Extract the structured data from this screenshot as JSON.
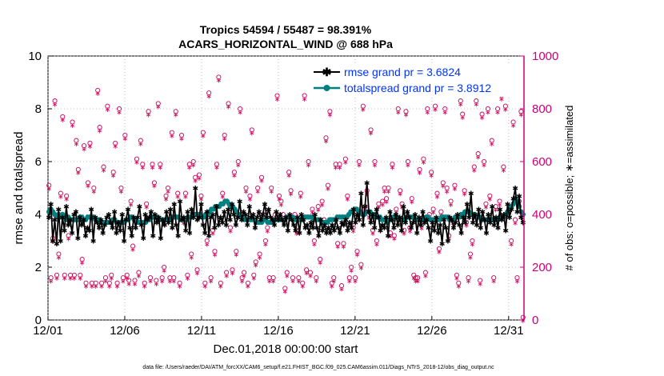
{
  "chart_data": {
    "type": "line",
    "title": [
      "Tropics 54594 / 55487 = 98.391%",
      "ACARS_HORIZONTAL_WIND @ 688 hPa"
    ],
    "xlabel": "Dec.01,2018 00:00:00 start",
    "ylabel_left": "rmse and totalspread",
    "ylabel_right": "# of obs: o=possible; ∗=assimilated",
    "footer": "data file: /Users/raeder/DAI/ATM_forcXX/CAM6_setup/f.e21.FHIST_BGC.f09_025.CAM6assim.011/Diags_NTrS_2018-12/obs_diag_output.nc",
    "x_range": [
      0,
      31
    ],
    "x_ticks": [
      0,
      5,
      10,
      15,
      20,
      25,
      30
    ],
    "x_tick_labels": [
      "12/01",
      "12/06",
      "12/11",
      "12/16",
      "12/21",
      "12/26",
      "12/31"
    ],
    "ylim_left": [
      0,
      10
    ],
    "y_ticks_left": [
      "0",
      "2",
      "4",
      "6",
      "8",
      "10"
    ],
    "ylim_right": [
      0,
      1000
    ],
    "y_ticks_right": [
      "0",
      "200",
      "400",
      "600",
      "800",
      "1000"
    ],
    "legend": {
      "location": "top-right",
      "entries": [
        "rmse grand pr = 3.6824",
        "totalspread grand pr = 3.8912"
      ]
    },
    "colors": {
      "rmse": "#000000",
      "spread": "#008080",
      "obs": "#cc0055",
      "legend_text": "#0033ff",
      "right_axis": "#cc0077"
    },
    "rmse_values": [
      3.9,
      4.4,
      3.0,
      3.8,
      2.9,
      4.2,
      3.0,
      3.9,
      3.4,
      4.3,
      3.6,
      3.8,
      3.3,
      4.0,
      4.1,
      3.1,
      3.9,
      3.6,
      3.8,
      3.2,
      3.5,
      3.4,
      4.2,
      3.0,
      3.9,
      3.7,
      3.5,
      3.8,
      3.3,
      3.6,
      3.9,
      4.0,
      3.7,
      3.5,
      4.1,
      3.3,
      3.7,
      3.4,
      4.0,
      3.0,
      3.8,
      4.2,
      3.5,
      3.2,
      3.9,
      3.5,
      3.9,
      4.3,
      3.6,
      3.1,
      4.0,
      3.8,
      3.9,
      4.1,
      3.2,
      4.0,
      3.7,
      3.9,
      3.1,
      3.8,
      3.6,
      4.1,
      3.7,
      4.2,
      3.5,
      4.4,
      3.6,
      3.2,
      4.5,
      3.8,
      3.9,
      3.4,
      4.1,
      3.3,
      4.2,
      3.9,
      5.0,
      3.8,
      3.9,
      4.4,
      3.6,
      3.3,
      4.1,
      3.2,
      3.9,
      4.0,
      3.5,
      4.3,
      3.6,
      3.9,
      3.7,
      4.1,
      3.6,
      4.2,
      3.8,
      4.4,
      4.0,
      3.6,
      3.9,
      4.5,
      3.8,
      4.1,
      4.0,
      3.6,
      4.3,
      3.9,
      4.0,
      3.5,
      3.9,
      4.1,
      3.8,
      4.0,
      4.4,
      3.9,
      4.2,
      3.9,
      3.8,
      3.6,
      4.1,
      3.8,
      4.0,
      3.8,
      3.6,
      3.9,
      3.4,
      4.0,
      3.8,
      3.6,
      3.4,
      3.9,
      3.3,
      4.0,
      3.8,
      3.5,
      3.6,
      3.3,
      3.7,
      3.5,
      4.0,
      3.5,
      3.2,
      3.8,
      3.4,
      3.6,
      3.3,
      3.5,
      3.3,
      3.6,
      3.4,
      3.8,
      3.5,
      3.3,
      3.7,
      3.6,
      3.8,
      3.4,
      3.7,
      3.5,
      4.2,
      3.7,
      4.0,
      3.8,
      4.8,
      3.6,
      4.3,
      5.2,
      4.1,
      3.7,
      4.0,
      3.5,
      4.2,
      3.9,
      3.4,
      3.6,
      3.5,
      3.9,
      3.2,
      4.1,
      3.8,
      3.5,
      4.0,
      3.6,
      3.9,
      3.4,
      4.3,
      3.7,
      4.1,
      3.9,
      3.5,
      3.7,
      4.0,
      3.3,
      3.9,
      3.6,
      4.1,
      3.7,
      3.8,
      3.5,
      3.0,
      3.7,
      3.4,
      3.9,
      3.3,
      3.6,
      2.9,
      3.8,
      3.5,
      3.0,
      3.9,
      3.8,
      3.5,
      3.7,
      4.0,
      3.6,
      3.3,
      3.9,
      3.7,
      4.4,
      3.9,
      4.8,
      3.7,
      4.0,
      3.6,
      4.2,
      3.5,
      4.1,
      3.8,
      3.3,
      4.0,
      3.7,
      4.3,
      3.6,
      3.9,
      3.5,
      4.2,
      3.8,
      4.0,
      3.4,
      4.4,
      3.9,
      4.2,
      4.6,
      5.0,
      4.1,
      4.7,
      3.9,
      3.7
    ],
    "spread_values": [
      4.1,
      4.2,
      4.1,
      4.0,
      3.9,
      4.0,
      3.9,
      4.0,
      3.9,
      3.8,
      3.9,
      3.8,
      3.8,
      3.8,
      3.8,
      3.8,
      3.9,
      3.9,
      3.8,
      3.8,
      3.9,
      3.9,
      3.9,
      3.9,
      3.8,
      3.8,
      3.8,
      3.7,
      3.7,
      3.7,
      3.7,
      3.7,
      3.7,
      3.8,
      3.8,
      3.7,
      3.7,
      3.7,
      3.7,
      3.7,
      3.8,
      3.8,
      3.9,
      3.9,
      3.8,
      3.8,
      3.7,
      3.7,
      3.7,
      3.7,
      3.7,
      3.8,
      3.8,
      3.9,
      3.9,
      3.9,
      3.9,
      3.8,
      3.8,
      3.8,
      3.8,
      3.8,
      3.8,
      3.8,
      3.9,
      3.9,
      3.9,
      3.9,
      3.8,
      3.8,
      3.8,
      3.8,
      3.9,
      3.9,
      3.9,
      4.0,
      4.0,
      4.0,
      4.0,
      3.9,
      3.9,
      4.0,
      4.0,
      4.1,
      4.2,
      4.2,
      4.3,
      4.3,
      4.3,
      4.4,
      4.4,
      4.5,
      4.5,
      4.4,
      4.3,
      4.3,
      4.2,
      4.1,
      4.0,
      3.9,
      3.9,
      3.8,
      3.8,
      3.8,
      3.8,
      3.8,
      3.8,
      3.7,
      3.7,
      3.7,
      3.7,
      3.8,
      3.8,
      3.7,
      3.7,
      3.7,
      3.8,
      3.8,
      3.8,
      3.8,
      3.8,
      3.8,
      3.8,
      3.9,
      3.9,
      3.9,
      3.9,
      3.8,
      3.8,
      3.8,
      3.8,
      3.8,
      3.9,
      3.9,
      3.9,
      3.9,
      3.9,
      3.8,
      3.8,
      3.8,
      3.8,
      3.7,
      3.7,
      3.7,
      3.7,
      3.8,
      3.8,
      3.8,
      3.8,
      3.9,
      3.9,
      3.9,
      3.9,
      3.9,
      3.9,
      4.0,
      4.1,
      4.1,
      4.2,
      4.2,
      4.1,
      4.1,
      4.0,
      4.0,
      4.1,
      4.1,
      4.1,
      4.0,
      4.0,
      3.9,
      3.9,
      3.9,
      3.8,
      3.8,
      3.8,
      3.7,
      3.8,
      3.8,
      3.9,
      3.9,
      3.9,
      3.8,
      3.8,
      3.8,
      3.8,
      3.9,
      3.9,
      3.9,
      3.9,
      3.8,
      3.8,
      3.8,
      3.8,
      3.8,
      3.8,
      3.9,
      3.9,
      3.8,
      3.8,
      3.8,
      3.8,
      3.8,
      3.8,
      3.9,
      3.9,
      3.9,
      3.9,
      3.8,
      3.8,
      3.8,
      3.9,
      3.9,
      3.9,
      4.0,
      4.0,
      4.1,
      4.1,
      4.1,
      4.0,
      4.0,
      4.0,
      3.9,
      3.9,
      3.9,
      3.8,
      3.8,
      3.8,
      3.8,
      3.8,
      3.8,
      3.8,
      3.8,
      3.8,
      3.9,
      3.9,
      3.9,
      4.0,
      4.1,
      4.2,
      4.3,
      4.4,
      4.6,
      4.5,
      4.3,
      4.1,
      4.0
    ],
    "obs_possible": [
      510,
      160,
      310,
      830,
      170,
      250,
      480,
      770,
      170,
      470,
      320,
      170,
      750,
      170,
      680,
      570,
      170,
      230,
      660,
      140,
      520,
      670,
      140,
      500,
      140,
      870,
      730,
      140,
      580,
      160,
      810,
      140,
      170,
      560,
      670,
      140,
      800,
      500,
      160,
      700,
      170,
      150,
      450,
      280,
      150,
      610,
      180,
      680,
      590,
      140,
      440,
      790,
      160,
      590,
      520,
      150,
      820,
      590,
      160,
      200,
      470,
      500,
      160,
      710,
      160,
      790,
      480,
      140,
      700,
      380,
      480,
      170,
      590,
      250,
      600,
      540,
      190,
      550,
      470,
      710,
      140,
      300,
      860,
      160,
      340,
      260,
      590,
      920,
      140,
      480,
      700,
      180,
      820,
      350,
      190,
      560,
      260,
      600,
      800,
      160,
      180,
      500,
      140,
      470,
      720,
      170,
      220,
      500,
      250,
      540,
      400,
      300,
      350,
      160,
      500,
      160,
      400,
      850,
      470,
      450,
      400,
      120,
      180,
      560,
      490,
      160,
      400,
      340,
      160,
      480,
      140,
      850,
      190,
      600,
      180,
      420,
      300,
      160,
      430,
      230,
      450,
      380,
      690,
      510,
      790,
      140,
      160,
      590,
      290,
      590,
      130,
      290,
      610,
      470,
      160,
      200,
      350,
      160,
      260,
      600,
      210,
      810,
      430,
      490,
      400,
      720,
      340,
      600,
      300,
      440,
      940,
      450,
      500,
      460,
      500,
      330,
      590,
      320,
      420,
      800,
      490,
      440,
      340,
      790,
      600,
      350,
      460,
      170,
      160,
      160,
      570,
      360,
      610,
      180,
      800,
      400,
      560,
      420,
      810,
      480,
      270,
      410,
      520,
      800,
      500,
      320,
      450,
      380,
      510,
      170,
      140,
      830,
      780,
      490,
      370,
      160,
      250,
      300,
      580,
      830,
      630,
      150,
      780,
      600,
      440,
      800,
      470,
      680,
      160,
      430,
      800,
      450,
      850,
      580,
      810,
      410,
      430,
      300,
      750,
      380,
      160,
      450,
      790,
      10
    ],
    "obs_assimilated": [
      500,
      150,
      300,
      820,
      160,
      240,
      470,
      760,
      160,
      460,
      310,
      160,
      740,
      160,
      670,
      560,
      160,
      220,
      650,
      130,
      510,
      660,
      130,
      490,
      130,
      860,
      720,
      130,
      570,
      150,
      800,
      130,
      160,
      550,
      660,
      130,
      790,
      490,
      150,
      690,
      160,
      140,
      440,
      270,
      140,
      600,
      170,
      670,
      580,
      130,
      430,
      780,
      150,
      580,
      510,
      140,
      810,
      580,
      150,
      190,
      460,
      490,
      150,
      700,
      150,
      780,
      470,
      130,
      690,
      370,
      470,
      160,
      580,
      240,
      590,
      530,
      180,
      540,
      460,
      700,
      130,
      290,
      850,
      150,
      330,
      250,
      580,
      910,
      130,
      470,
      690,
      170,
      810,
      340,
      180,
      550,
      250,
      590,
      790,
      150,
      170,
      490,
      130,
      460,
      710,
      160,
      210,
      490,
      240,
      530,
      390,
      290,
      340,
      150,
      490,
      150,
      390,
      840,
      460,
      440,
      390,
      110,
      170,
      550,
      480,
      150,
      390,
      330,
      150,
      470,
      130,
      840,
      180,
      590,
      170,
      410,
      290,
      150,
      420,
      220,
      440,
      370,
      680,
      500,
      780,
      130,
      150,
      580,
      280,
      580,
      120,
      280,
      600,
      460,
      150,
      190,
      340,
      150,
      250,
      590,
      200,
      800,
      420,
      480,
      390,
      710,
      330,
      590,
      290,
      430,
      930,
      440,
      490,
      450,
      490,
      320,
      580,
      310,
      410,
      790,
      480,
      430,
      330,
      780,
      590,
      340,
      450,
      160,
      150,
      150,
      560,
      350,
      600,
      170,
      790,
      390,
      550,
      410,
      800,
      470,
      260,
      400,
      510,
      790,
      490,
      310,
      440,
      370,
      500,
      160,
      130,
      820,
      770,
      480,
      360,
      150,
      240,
      290,
      570,
      820,
      620,
      140,
      770,
      590,
      430,
      790,
      460,
      670,
      150,
      420,
      790,
      440,
      840,
      570,
      800,
      400,
      420,
      290,
      740,
      370,
      150,
      440,
      780,
      0
    ]
  }
}
